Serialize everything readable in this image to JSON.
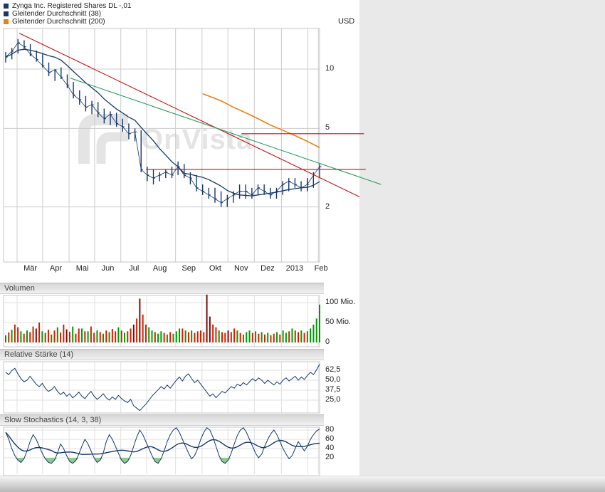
{
  "legend": [
    {
      "label": "Zynga Inc. Registered Shares DL -,01",
      "color": "#16386a"
    },
    {
      "label": "Gleitender Durchschnitt (38)",
      "color": "#16386a"
    },
    {
      "label": "Gleitender Durchschnitt (200)",
      "color": "#e8820e"
    }
  ],
  "currency_label": "USD",
  "watermark_text": "OnVista",
  "colors": {
    "price": "#16386a",
    "ma38": "#16386a",
    "ma200": "#e8820e",
    "trend_red": "#cc1111",
    "trend_green": "#2f9e5f",
    "vol_green": "#009a00",
    "vol_red": "#cc2200",
    "vol_darkred": "#7a0c0c",
    "indicator": "#16386a",
    "oversold_fill": "#8fca8f",
    "grid": "#cccccc",
    "grid_light": "#e0e0e0",
    "bg_right": "#e9e9e9"
  },
  "chart_data": [
    {
      "type": "ohlc",
      "title": "Zynga Inc. Registered Shares DL -,01",
      "ylabel": "USD",
      "y_scale": "log",
      "y_range": [
        1.05,
        16
      ],
      "y_ticks": [
        {
          "label": "10",
          "value": 10
        },
        {
          "label": "5",
          "value": 5
        },
        {
          "label": "2",
          "value": 2
        }
      ],
      "x_tick_labels": [
        "Mär",
        "Apr",
        "Mai",
        "Jun",
        "Jul",
        "Aug",
        "Sep",
        "Okt",
        "Nov",
        "Dez",
        "2013",
        "Feb"
      ],
      "month_grid_weeks": [
        1.85,
        6.0,
        10.3,
        14.45,
        18.7,
        22.9,
        27.6,
        31.9,
        36.1,
        40.4,
        44.8,
        49.1
      ],
      "extra_grid_weeks": [
        50.8
      ],
      "weeks": 52,
      "high": [
        12.2,
        12.8,
        14.2,
        14.0,
        13.4,
        12.4,
        12.0,
        10.8,
        10.0,
        10.2,
        9.4,
        8.6,
        7.8,
        7.3,
        6.9,
        6.8,
        6.3,
        6.1,
        6.0,
        5.6,
        5.3,
        5.0,
        4.9,
        3.2,
        3.1,
        3.0,
        3.1,
        3.2,
        3.4,
        3.3,
        3.0,
        2.9,
        2.6,
        2.5,
        2.5,
        2.4,
        2.3,
        2.4,
        2.6,
        2.6,
        2.5,
        2.6,
        2.6,
        2.5,
        2.5,
        2.7,
        2.8,
        2.8,
        2.7,
        2.8,
        3.0,
        3.3
      ],
      "low": [
        10.8,
        11.2,
        12.0,
        12.6,
        11.6,
        10.9,
        10.2,
        9.2,
        8.7,
        8.9,
        8.0,
        7.1,
        6.6,
        6.1,
        5.9,
        5.7,
        5.3,
        5.2,
        5.1,
        4.8,
        4.4,
        4.3,
        3.0,
        2.7,
        2.6,
        2.7,
        2.8,
        2.8,
        2.9,
        2.8,
        2.6,
        2.4,
        2.3,
        2.2,
        2.1,
        2.0,
        2.0,
        2.1,
        2.2,
        2.2,
        2.2,
        2.3,
        2.3,
        2.2,
        2.2,
        2.3,
        2.4,
        2.5,
        2.4,
        2.4,
        2.5,
        2.8
      ],
      "close": [
        11.5,
        12.3,
        13.6,
        13.0,
        11.9,
        11.2,
        10.4,
        9.6,
        9.9,
        9.1,
        8.3,
        7.4,
        7.0,
        6.4,
        6.6,
        6.0,
        5.6,
        5.9,
        5.3,
        5.1,
        4.7,
        4.8,
        3.1,
        2.9,
        2.8,
        2.9,
        3.0,
        2.9,
        3.2,
        2.9,
        2.8,
        2.5,
        2.4,
        2.3,
        2.2,
        2.1,
        2.2,
        2.3,
        2.4,
        2.4,
        2.3,
        2.5,
        2.4,
        2.3,
        2.4,
        2.6,
        2.7,
        2.6,
        2.5,
        2.6,
        2.9,
        3.2
      ],
      "ma38_window_weeks": 8,
      "ma200": {
        "start_week": 32,
        "values": [
          7.5,
          7.3,
          7.1,
          6.9,
          6.65,
          6.4,
          6.2,
          6.0,
          5.8,
          5.6,
          5.4,
          5.2,
          5.05,
          4.9,
          4.75,
          4.6,
          4.45,
          4.3,
          4.15,
          4.0
        ]
      },
      "trend_lines": [
        {
          "x1": 2.2,
          "y1": 15.2,
          "x2": 57.5,
          "y2": 2.25,
          "color": "red"
        },
        {
          "x1": 10.5,
          "y1": 9.0,
          "x2": 61.0,
          "y2": 2.6,
          "color": "green"
        },
        {
          "x1": 38.3,
          "y1": 4.7,
          "x2": 58.2,
          "y2": 4.7,
          "color": "red"
        },
        {
          "x1": 22.8,
          "y1": 3.1,
          "x2": 58.5,
          "y2": 3.1,
          "color": "red"
        }
      ]
    },
    {
      "type": "bar",
      "title": "Volumen",
      "unit": "Mio.",
      "y_ticks": [
        {
          "label": "100 Mio.",
          "value": 100
        },
        {
          "label": "50 Mio.",
          "value": 50
        },
        {
          "label": "0",
          "value": 0
        }
      ],
      "values": [
        18,
        25,
        32,
        45,
        38,
        28,
        22,
        30,
        26,
        40,
        35,
        50,
        28,
        24,
        32,
        20,
        30,
        38,
        25,
        45,
        33,
        27,
        40,
        22,
        35,
        35,
        28,
        28,
        40,
        24,
        30,
        26,
        22,
        30,
        26,
        34,
        28,
        38,
        30,
        24,
        28,
        35,
        45,
        60,
        110,
        70,
        45,
        38,
        30,
        26,
        22,
        28,
        24,
        20,
        26,
        22,
        28,
        35,
        35,
        30,
        26,
        30,
        24,
        28,
        30,
        26,
        120,
        65,
        45,
        38,
        30,
        26,
        24,
        30,
        26,
        35,
        30,
        24,
        20,
        26,
        30,
        24,
        28,
        22,
        26,
        20,
        24,
        18,
        22,
        26,
        20,
        30,
        24,
        28,
        35,
        30,
        26,
        30,
        24,
        28,
        35,
        45,
        60,
        95
      ],
      "colors": "grgrrgrgrrdrgrrgrgrrdrgrrgrgrrgrgrgrrgrgrrdrdrrggrggrgrgggrgrgrrrrddrrgrrdrrgrgggrgrgrgrrgrggrgrrgrggggg"
    },
    {
      "type": "line",
      "title": "Relative Stärke (14)",
      "y_ticks": [
        {
          "label": "62,5",
          "value": 62.5
        },
        {
          "label": "50,0",
          "value": 50
        },
        {
          "label": "37,5",
          "value": 37.5
        },
        {
          "label": "25,0",
          "value": 25
        }
      ],
      "values": [
        60,
        57,
        62,
        65,
        58,
        52,
        48,
        50,
        55,
        50,
        45,
        42,
        46,
        40,
        36,
        38,
        42,
        36,
        32,
        35,
        30,
        33,
        28,
        31,
        35,
        30,
        27,
        32,
        36,
        30,
        26,
        29,
        33,
        28,
        25,
        29,
        26,
        31,
        27,
        24,
        22,
        26,
        18,
        15,
        12,
        16,
        20,
        25,
        30,
        34,
        38,
        42,
        39,
        44,
        40,
        45,
        50,
        54,
        49,
        55,
        58,
        52,
        47,
        50,
        45,
        40,
        35,
        30,
        33,
        28,
        32,
        36,
        34,
        38,
        42,
        40,
        45,
        43,
        47,
        44,
        48,
        52,
        49,
        53,
        50,
        46,
        50,
        47,
        44,
        48,
        45,
        50,
        53,
        49,
        52,
        55,
        50,
        54,
        51,
        56,
        60,
        57,
        63,
        70
      ]
    },
    {
      "type": "line",
      "title": "Slow Stochastics (14, 3, 38)",
      "y_ticks": [
        {
          "label": "80",
          "value": 80
        },
        {
          "label": "60",
          "value": 60
        },
        {
          "label": "40",
          "value": 40
        },
        {
          "label": "20",
          "value": 20
        }
      ],
      "k_values": [
        75,
        60,
        40,
        25,
        15,
        10,
        18,
        35,
        55,
        70,
        60,
        45,
        30,
        18,
        10,
        8,
        15,
        30,
        50,
        40,
        25,
        12,
        8,
        14,
        28,
        45,
        60,
        50,
        35,
        20,
        10,
        15,
        30,
        55,
        70,
        60,
        45,
        30,
        15,
        8,
        12,
        25,
        45,
        65,
        80,
        70,
        55,
        40,
        25,
        12,
        8,
        18,
        35,
        55,
        70,
        80,
        85,
        75,
        60,
        45,
        30,
        18,
        25,
        40,
        60,
        75,
        85,
        80,
        65,
        45,
        25,
        12,
        8,
        15,
        30,
        50,
        68,
        80,
        85,
        75,
        60,
        45,
        30,
        20,
        28,
        45,
        60,
        72,
        80,
        70,
        55,
        40,
        28,
        18,
        25,
        40,
        55,
        45,
        35,
        45,
        60,
        70,
        78,
        82
      ],
      "signal_window": 16,
      "oversold_level": 20
    }
  ]
}
